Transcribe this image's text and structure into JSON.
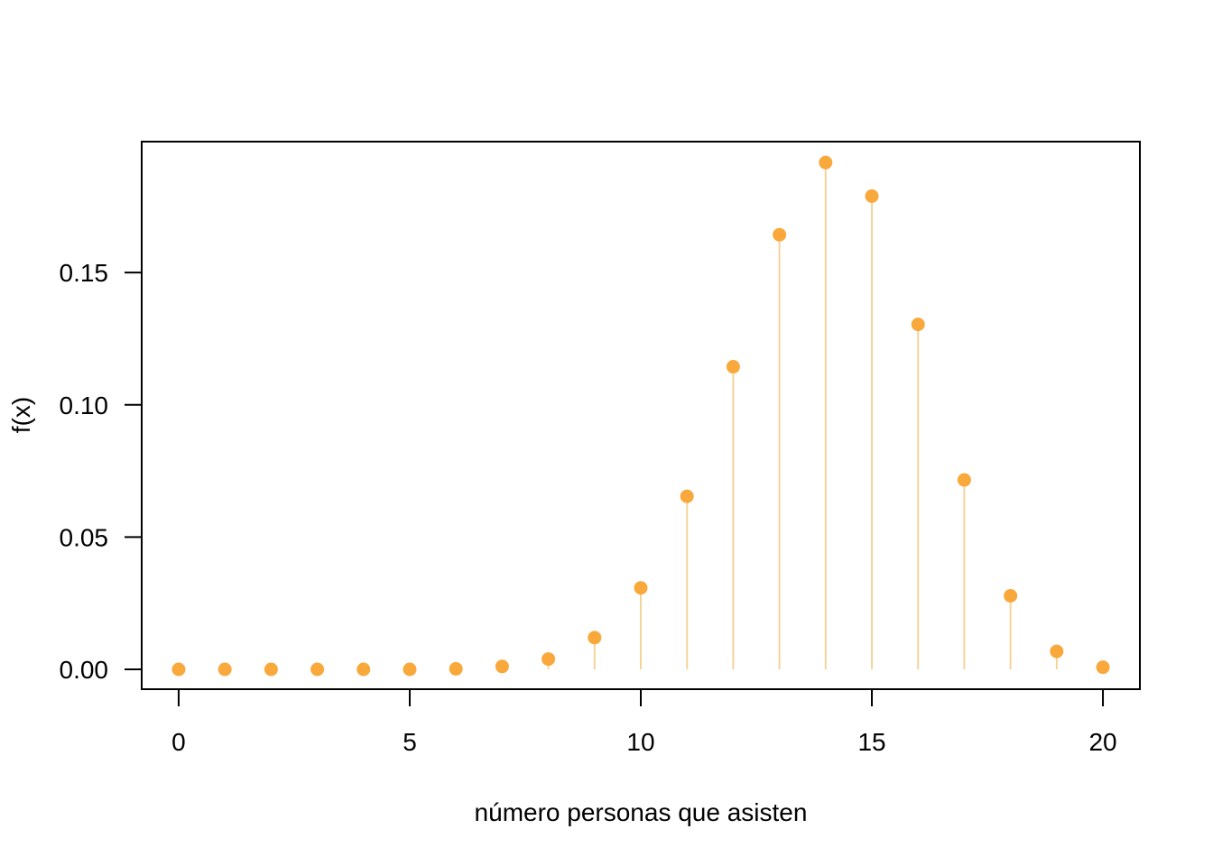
{
  "chart_data": {
    "type": "scatter",
    "xlabel": "número personas que asisten",
    "ylabel": "f(x)",
    "xlim": [
      -0.8,
      20.8
    ],
    "ylim": [
      -0.0075,
      0.1995
    ],
    "x_ticks": [
      0,
      5,
      10,
      15,
      20
    ],
    "x_tick_labels": [
      "0",
      "5",
      "10",
      "15",
      "20"
    ],
    "y_ticks": [
      0.0,
      0.05,
      0.1,
      0.15
    ],
    "y_tick_labels": [
      "0.00",
      "0.05",
      "0.10",
      "0.15"
    ],
    "grid": false,
    "style": "points with vertical lines to zero (probability mass function)",
    "colors": {
      "point": "#F9A83B",
      "stem": "#F3D59A"
    },
    "x": [
      0,
      1,
      2,
      3,
      4,
      5,
      6,
      7,
      8,
      9,
      10,
      11,
      12,
      13,
      14,
      15,
      16,
      17,
      18,
      19,
      20
    ],
    "y": [
      0.0,
      0.0,
      0.0,
      0.0,
      0.0,
      0.0,
      0.0002,
      0.0011,
      0.0039,
      0.012,
      0.0308,
      0.0654,
      0.1144,
      0.1643,
      0.1916,
      0.1789,
      0.1304,
      0.0716,
      0.0278,
      0.0068,
      0.0008
    ]
  }
}
